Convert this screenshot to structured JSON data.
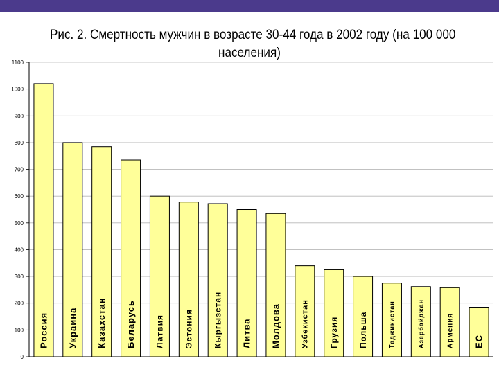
{
  "header": {
    "accent_color": "#4b3a8c"
  },
  "chart_data": {
    "type": "bar",
    "title_line1": "Рис. 2. Смертность мужчин в возрасте 30-44 года в 2002 году (на 100 000",
    "title_line2": "населения)",
    "xlabel": "",
    "ylabel": "",
    "ylim": [
      0,
      1100
    ],
    "y_ticks": [
      "0",
      "100",
      "200",
      "300",
      "400",
      "500",
      "600",
      "700",
      "800",
      "900",
      "1000",
      "1100"
    ],
    "grid": true,
    "legend": "none",
    "bar_color": "#ffff99",
    "categories": [
      "Россия",
      "Украина",
      "Казахстан",
      "Беларусь",
      "Латвия",
      "Эстония",
      "Кыргызстан",
      "Литва",
      "Молдова",
      "Узбекистан",
      "Грузия",
      "Польша",
      "Таджикистан",
      "Азербайджан",
      "Армения",
      "ЕС"
    ],
    "values": [
      1020,
      800,
      785,
      735,
      600,
      578,
      572,
      550,
      535,
      340,
      325,
      300,
      275,
      262,
      258,
      185
    ]
  }
}
